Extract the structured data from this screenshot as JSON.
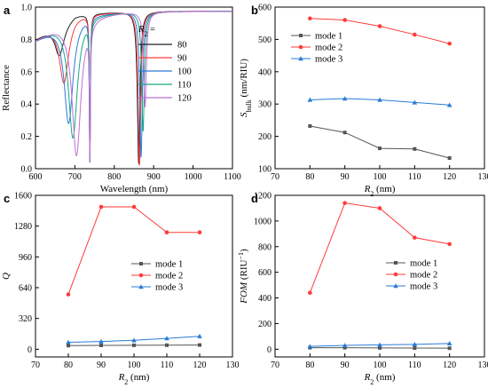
{
  "chart_data": [
    {
      "panel": "a",
      "type": "line",
      "xlabel": "Wavelength (nm)",
      "ylabel": "Reflectance",
      "xlim": [
        600,
        1100
      ],
      "ylim": [
        0.0,
        1.0
      ],
      "xticks": [
        "600",
        "700",
        "800",
        "900",
        "1000",
        "1100"
      ],
      "yticks": [
        "0.0",
        "0.2",
        "0.4",
        "0.6",
        "0.8",
        "1.0"
      ],
      "legend_title": "R2",
      "legend_position": "top-right",
      "series": [
        {
          "name": "80",
          "color": "#222222",
          "dips": [
            [
              660,
              0.7,
              14
            ],
            [
              738,
              0.04,
              1.5
            ],
            [
              862,
              0.03,
              4
            ]
          ]
        },
        {
          "name": "90",
          "color": "#ff3b3b",
          "dips": [
            [
              672,
              0.53,
              14
            ],
            [
              738,
              0.04,
              1.5
            ],
            [
              864,
              0.02,
              4
            ]
          ]
        },
        {
          "name": "100",
          "color": "#2a7bd6",
          "dips": [
            [
              684,
              0.28,
              14
            ],
            [
              738,
              0.04,
              1.5
            ],
            [
              868,
              0.07,
              4
            ]
          ]
        },
        {
          "name": "110",
          "color": "#17a884",
          "dips": [
            [
              695,
              0.19,
              14
            ],
            [
              738,
              0.04,
              1.5
            ],
            [
              873,
              0.23,
              4
            ]
          ]
        },
        {
          "name": "120",
          "color": "#c06fd8",
          "dips": [
            [
              704,
              0.08,
              14
            ],
            [
              738,
              0.04,
              1.5
            ],
            [
              878,
              0.38,
              4
            ]
          ]
        }
      ]
    },
    {
      "panel": "b",
      "type": "line",
      "xlabel": "R2 (nm)",
      "ylabel": "Sbulk (nm/RIU)",
      "xlim": [
        70,
        130
      ],
      "ylim": [
        100,
        600
      ],
      "xticks": [
        "70",
        "80",
        "90",
        "100",
        "110",
        "120",
        "130"
      ],
      "yticks": [
        "100",
        "200",
        "300",
        "400",
        "500",
        "600"
      ],
      "legend_position": "upper-left",
      "x": [
        80,
        90,
        100,
        110,
        120
      ],
      "series": [
        {
          "name": "mode 1",
          "color": "#555555",
          "marker": "square",
          "values": [
            232,
            212,
            163,
            161,
            133
          ]
        },
        {
          "name": "mode 2",
          "color": "#ff3b3b",
          "marker": "circle",
          "values": [
            565,
            560,
            541,
            515,
            487
          ]
        },
        {
          "name": "mode 3",
          "color": "#2a7bd6",
          "marker": "triangle",
          "values": [
            313,
            317,
            313,
            305,
            297
          ]
        }
      ]
    },
    {
      "panel": "c",
      "type": "line",
      "xlabel": "R2 (nm)",
      "ylabel": "Q",
      "xlim": [
        70,
        130
      ],
      "ylim": [
        -80,
        1600
      ],
      "xticks": [
        "70",
        "80",
        "90",
        "100",
        "110",
        "120",
        "130"
      ],
      "yticks": [
        "0",
        "320",
        "640",
        "960",
        "1280",
        "1600"
      ],
      "legend_position": "middle-right",
      "x": [
        80,
        90,
        100,
        110,
        120
      ],
      "series": [
        {
          "name": "mode 1",
          "color": "#555555",
          "marker": "square",
          "values": [
            38,
            40,
            41,
            42,
            44
          ]
        },
        {
          "name": "mode 2",
          "color": "#ff3b3b",
          "marker": "circle",
          "values": [
            570,
            1480,
            1480,
            1215,
            1215
          ]
        },
        {
          "name": "mode 3",
          "color": "#2a7bd6",
          "marker": "triangle",
          "values": [
            72,
            80,
            93,
            113,
            135
          ]
        }
      ]
    },
    {
      "panel": "d",
      "type": "line",
      "xlabel": "R2 (nm)",
      "ylabel": "FOM (RIU-1)",
      "xlim": [
        70,
        130
      ],
      "ylim": [
        -60,
        1200
      ],
      "xticks": [
        "70",
        "80",
        "90",
        "100",
        "110",
        "120",
        "130"
      ],
      "yticks": [
        "0",
        "200",
        "400",
        "600",
        "800",
        "1000",
        "1200"
      ],
      "legend_position": "lower-right",
      "x": [
        80,
        90,
        100,
        110,
        120
      ],
      "series": [
        {
          "name": "mode 1",
          "color": "#555555",
          "marker": "square",
          "values": [
            12,
            12,
            10,
            9,
            8
          ]
        },
        {
          "name": "mode 2",
          "color": "#ff3b3b",
          "marker": "circle",
          "values": [
            440,
            1140,
            1100,
            870,
            820
          ]
        },
        {
          "name": "mode 3",
          "color": "#2a7bd6",
          "marker": "triangle",
          "values": [
            22,
            30,
            34,
            38,
            45
          ]
        }
      ]
    }
  ]
}
